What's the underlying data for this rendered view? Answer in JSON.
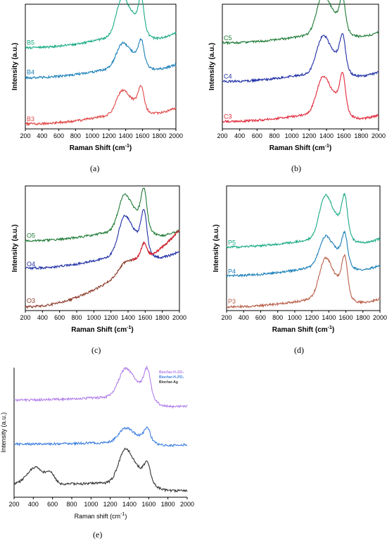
{
  "chart_data": [
    {
      "id": "a",
      "caption": "(a)",
      "type": "line",
      "xlabel": "Raman Shift (cm",
      "xlabel_sup": "-1",
      "xlabel_end": ")",
      "ylabel": "Intensity (a.u.)",
      "xlim": [
        200,
        2000
      ],
      "ylim": [
        0,
        10
      ],
      "xticks": [
        200,
        400,
        600,
        800,
        1000,
        1200,
        1400,
        1600,
        1800,
        2000
      ],
      "label_mode": "left",
      "series": [
        {
          "name": "B5",
          "color": "#1aaa84",
          "base": 6.5,
          "slope": 1.7,
          "d": 2.5,
          "g": 1.9,
          "tail": 1.7
        },
        {
          "name": "B4",
          "color": "#1a7fb8",
          "base": 4.1,
          "slope": 1.5,
          "d": 1.5,
          "g": 1.3,
          "tail": 1.5
        },
        {
          "name": "B3",
          "color": "#e04848",
          "base": 0.4,
          "slope": 1.4,
          "d": 1.5,
          "g": 1.4,
          "tail": 1.1
        }
      ]
    },
    {
      "id": "b",
      "caption": "(b)",
      "type": "line",
      "xlabel": "Raman Shift (cm",
      "xlabel_sup": "-1",
      "xlabel_end": ")",
      "ylabel": "Intensity (a.u.)",
      "xlim": [
        200,
        2000
      ],
      "ylim": [
        0,
        10
      ],
      "xticks": [
        200,
        400,
        600,
        800,
        1000,
        1200,
        1400,
        1600,
        1800,
        2000
      ],
      "label_mode": "left",
      "series": [
        {
          "name": "C5",
          "color": "#1e7a35",
          "base": 6.9,
          "slope": 1.3,
          "d": 2.6,
          "g": 1.8,
          "tail": 1.4
        },
        {
          "name": "C4",
          "color": "#1f2fa5",
          "base": 3.8,
          "slope": 1.3,
          "d": 2.4,
          "g": 2.0,
          "tail": 1.5
        },
        {
          "name": "C3",
          "color": "#e0283a",
          "base": 0.6,
          "slope": 1.2,
          "d": 2.4,
          "g": 2.2,
          "tail": 1.6
        }
      ]
    },
    {
      "id": "c",
      "caption": "(c)",
      "type": "line",
      "xlabel": "Raman Shift (cm",
      "xlabel_sup": "-1",
      "xlabel_end": ")",
      "ylabel": "Intensity (a.u.)",
      "xlim": [
        200,
        2000
      ],
      "ylim": [
        0,
        10
      ],
      "xticks": [
        200,
        400,
        600,
        800,
        1000,
        1200,
        1400,
        1600,
        1800,
        2000
      ],
      "label_mode": "left",
      "series": [
        {
          "name": "O5",
          "color": "#1e7a35",
          "base": 5.6,
          "slope": 1.5,
          "d": 2.3,
          "g": 2.3,
          "tail": 1.8
        },
        {
          "name": "O4",
          "color": "#1f2fa5",
          "base": 3.4,
          "slope": 1.9,
          "d": 2.5,
          "g": 2.3,
          "tail": 1.9
        },
        {
          "name": "O3",
          "color": "#8b3a2a",
          "base": 0.3,
          "slope": 4.3,
          "d": 0.6,
          "g": 0.9,
          "tail": 0.8,
          "tail_color": "#e0283a"
        }
      ]
    },
    {
      "id": "d",
      "caption": "(d)",
      "type": "line",
      "xlabel": "Raman Shift (cm",
      "xlabel_sup": "-1",
      "xlabel_end": ")",
      "ylabel": "Intensity (a.u.)",
      "xlim": [
        200,
        2000
      ],
      "ylim": [
        0,
        10
      ],
      "xticks": [
        200,
        400,
        600,
        800,
        1000,
        1200,
        1400,
        1600,
        1800,
        2000
      ],
      "label_mode": "left",
      "series": [
        {
          "name": "P5",
          "color": "#1aaa84",
          "base": 5.1,
          "slope": 1.3,
          "d": 2.8,
          "g": 2.3,
          "tail": 1.6
        },
        {
          "name": "P4",
          "color": "#1a7fb8",
          "base": 2.8,
          "slope": 1.4,
          "d": 1.9,
          "g": 1.7,
          "tail": 1.6
        },
        {
          "name": "P3",
          "color": "#b8604a",
          "base": 0.3,
          "slope": 1.3,
          "d": 2.6,
          "g": 2.3,
          "tail": 1.6
        }
      ]
    },
    {
      "id": "e",
      "caption": "(e)",
      "type": "line",
      "xlabel": "Raman shift (cm",
      "xlabel_sup": "-1",
      "xlabel_end": ")",
      "ylabel": "Intensity (a.u.)",
      "xlim": [
        200,
        2000
      ],
      "ylim": [
        0,
        10
      ],
      "xticks": [
        200,
        400,
        600,
        800,
        1000,
        1200,
        1400,
        1600,
        1800,
        2000
      ],
      "label_mode": "legend",
      "series": [
        {
          "name": "Biochar-H₂SO₄",
          "color": "#b07ee8",
          "base": 7.5,
          "slope": 0.5,
          "d": 1.8,
          "g": 1.6,
          "tail": 1.4
        },
        {
          "name": "Biochar-H₃PO₄",
          "color": "#3f7fe0",
          "base": 4.1,
          "slope": 0.25,
          "d": 0.9,
          "g": 0.8,
          "tail": 0.5
        },
        {
          "name": "Biochar-Ag",
          "color": "#333333",
          "base": 1.0,
          "slope": 0.2,
          "d": 2.2,
          "g": 1.0,
          "tail": 0.9,
          "bump": 1.3
        }
      ]
    }
  ]
}
